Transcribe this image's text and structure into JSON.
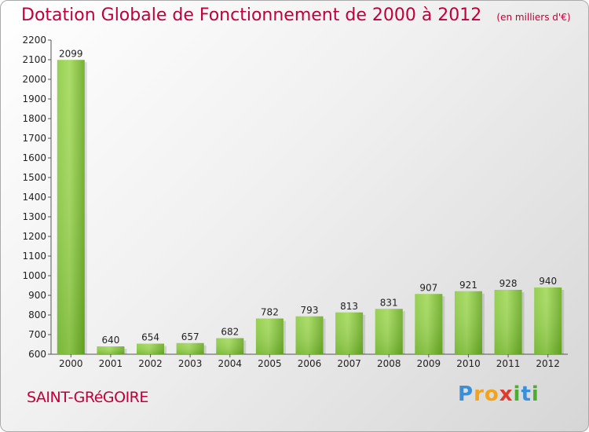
{
  "chart_data": {
    "type": "bar",
    "title": "Dotation Globale de Fonctionnement de 2000 à 2012",
    "subtitle": "(en milliers d'€)",
    "categories": [
      "2000",
      "2001",
      "2002",
      "2003",
      "2004",
      "2005",
      "2006",
      "2007",
      "2008",
      "2009",
      "2010",
      "2011",
      "2012"
    ],
    "values": [
      2099,
      640,
      654,
      657,
      682,
      782,
      793,
      813,
      831,
      907,
      921,
      928,
      940
    ],
    "ylim": [
      600,
      2200
    ],
    "yticks": [
      600,
      700,
      800,
      900,
      1000,
      1100,
      1200,
      1300,
      1400,
      1500,
      1600,
      1700,
      1800,
      1900,
      2000,
      2100,
      2200
    ],
    "grid": false,
    "bar_color": "#7ec233"
  },
  "footer": {
    "commune": "SAINT-GRéGOIRE",
    "brand": "Proxiti"
  }
}
